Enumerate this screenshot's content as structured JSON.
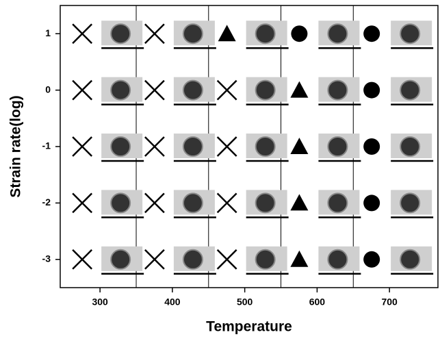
{
  "chart_data": {
    "type": "scatter",
    "xlabel": "Temperature",
    "ylabel": "Strain rate(log)",
    "xlim": [
      245,
      767
    ],
    "ylim": [
      -3.5,
      1.5
    ],
    "xticks": [
      300,
      400,
      500,
      600,
      700
    ],
    "yticks": [
      -3,
      -2,
      -1,
      0,
      1
    ],
    "separators": [
      350,
      450,
      550,
      650
    ],
    "series": [
      {
        "marker": "x",
        "color": "#000000",
        "x": [
          300,
          400,
          300,
          400,
          500,
          300,
          400,
          500,
          300,
          400,
          500,
          300,
          400,
          500
        ],
        "y": [
          1,
          1,
          0,
          0,
          0,
          -1,
          -1,
          -1,
          -2,
          -2,
          -2,
          -3,
          -3,
          -3
        ]
      },
      {
        "marker": "triangle",
        "color": "#000000",
        "x": [
          500,
          600,
          600,
          600,
          600
        ],
        "y": [
          1,
          0,
          -1,
          -2,
          -3
        ]
      },
      {
        "marker": "circle",
        "color": "#000000",
        "x": [
          600,
          700,
          700,
          700,
          700,
          700
        ],
        "y": [
          1,
          1,
          0,
          -1,
          -2,
          -3
        ]
      }
    ]
  }
}
